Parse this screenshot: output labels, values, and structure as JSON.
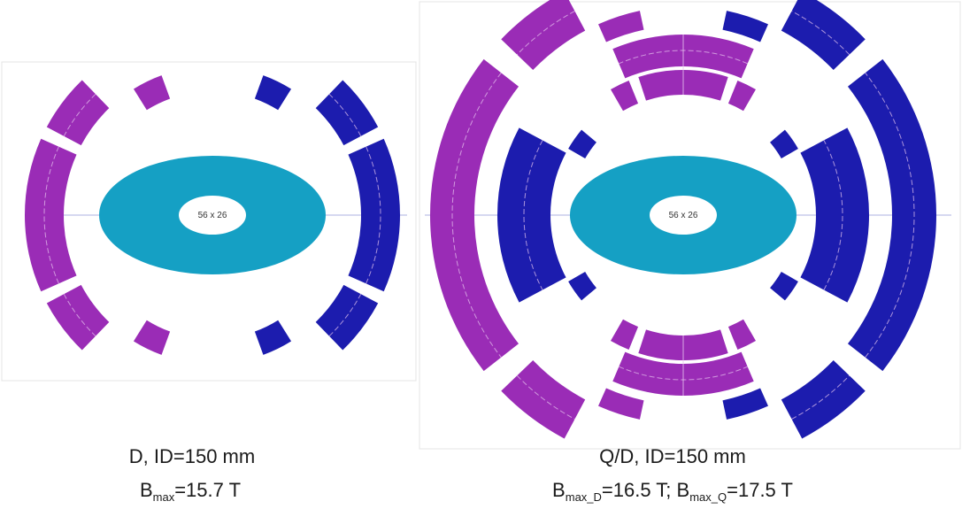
{
  "colors": {
    "magenta": "#9a2cb6",
    "blue": "#1c1cae",
    "iron_ring": "#15a0c4",
    "aperture": "#ffffff",
    "separator": "#e8c8f0"
  },
  "left_magnet": {
    "aperture_label": "56 x 26",
    "caption_line1": "D, ID=150 mm",
    "caption_b_main": "B",
    "caption_b_sub": "max",
    "caption_b_value": "=15.7 T"
  },
  "right_magnet": {
    "aperture_label": "56 x 26",
    "caption_line1": "Q/D, ID=150 mm",
    "caption_b1_main": "B",
    "caption_b1_sub": "max_D",
    "caption_b1_value": "=16.5 T; ",
    "caption_b2_main": "B",
    "caption_b2_sub": "max_Q",
    "caption_b2_value": "=17.5 T"
  }
}
